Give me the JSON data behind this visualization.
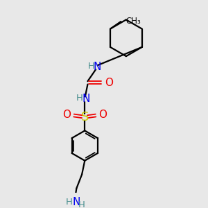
{
  "bg_color": "#e8e8e8",
  "atom_colors": {
    "C": "#000000",
    "H": "#4a9090",
    "N": "#0000ee",
    "O": "#ee0000",
    "S": "#cccc00"
  },
  "bond_color": "#000000",
  "figsize": [
    3.0,
    3.0
  ],
  "dpi": 100,
  "xlim": [
    0,
    10
  ],
  "ylim": [
    0,
    10
  ]
}
